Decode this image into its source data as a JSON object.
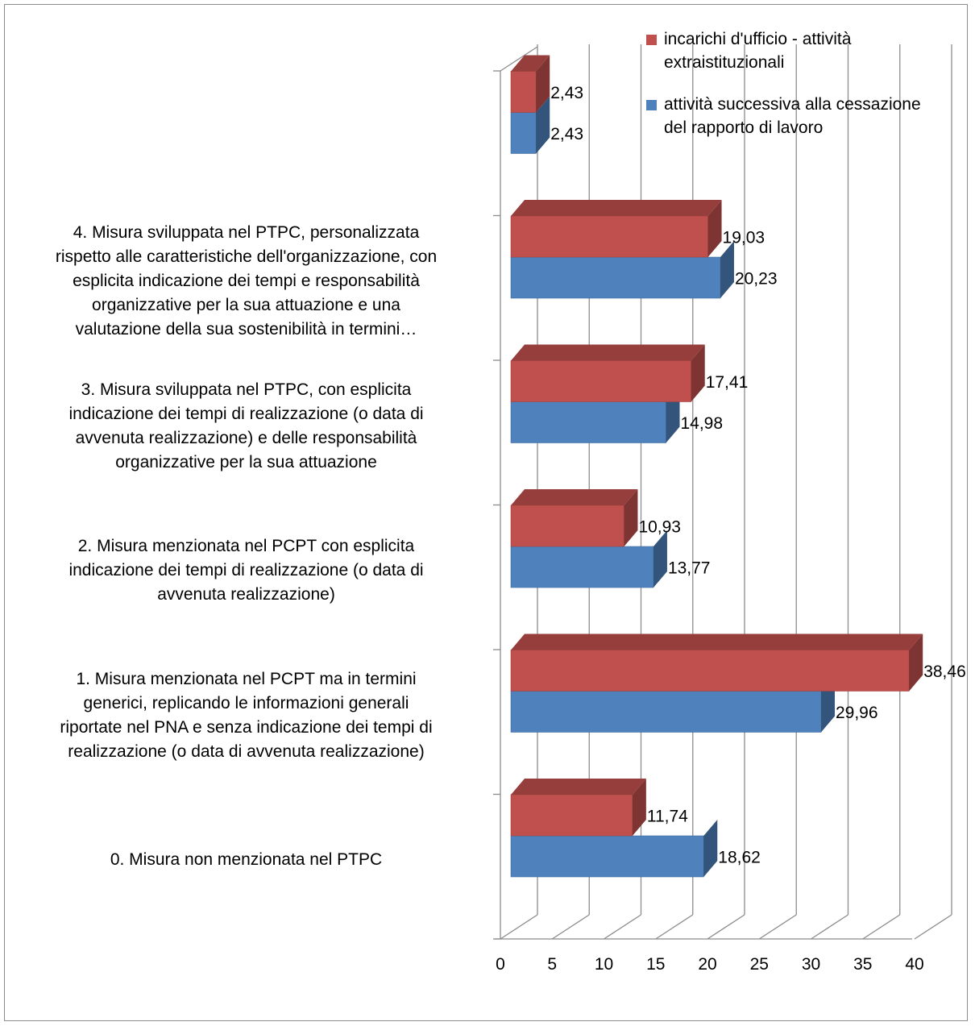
{
  "chart_data": {
    "type": "bar",
    "orientation": "horizontal",
    "style": "3d",
    "categories": [
      "0. Misura non menzionata nel PTPC",
      "1. Misura menzionata nel PCPT ma in termini generici, replicando le informazioni generali riportate nel PNA e senza indicazione dei tempi di realizzazione (o data di avvenuta realizzazione)",
      "2. Misura menzionata nel PCPT con esplicita indicazione dei tempi di realizzazione (o data di avvenuta realizzazione)",
      "3. Misura sviluppata nel PTPC, con esplicita indicazione dei tempi di realizzazione (o data di avvenuta realizzazione) e delle responsabilità organizzative per la sua attuazione",
      "4. Misura sviluppata nel PTPC, personalizzata rispetto alle caratteristiche dell'organizzazione, con esplicita indicazione dei tempi e responsabilità organizzative per la sua attuazione e una valutazione della sua sostenibilità in termini…",
      ""
    ],
    "category_lines": [
      [
        "0. Misura non menzionata nel PTPC"
      ],
      [
        "1. Misura menzionata nel PCPT ma in termini",
        "generici, replicando le informazioni generali",
        "riportate nel PNA e senza indicazione dei tempi di",
        "realizzazione (o data di avvenuta realizzazione)"
      ],
      [
        "2. Misura menzionata nel PCPT con esplicita",
        "indicazione dei tempi di realizzazione (o data di",
        "avvenuta realizzazione)"
      ],
      [
        "3. Misura sviluppata nel PTPC, con esplicita",
        "indicazione dei tempi di realizzazione (o data di",
        "avvenuta realizzazione) e delle responsabilità",
        "organizzative per la sua attuazione"
      ],
      [
        "4. Misura sviluppata nel PTPC, personalizzata",
        "rispetto alle caratteristiche dell'organizzazione, con",
        "esplicita indicazione dei tempi e responsabilità",
        "organizzative per la sua attuazione e una",
        "valutazione della sua sostenibilità in termini…"
      ],
      []
    ],
    "series": [
      {
        "name": "attività successiva alla cessazione del rapporto di lavoro",
        "legend_lines": [
          "attività successiva alla cessazione",
          "del rapporto di lavoro"
        ],
        "color": "#4f81bd",
        "values": [
          18.62,
          29.96,
          13.77,
          14.98,
          20.23,
          2.43
        ],
        "labels": [
          "18,62",
          "29,96",
          "13,77",
          "14,98",
          "20,23",
          "2,43"
        ]
      },
      {
        "name": "incarichi d'ufficio - attività extraistituzionali",
        "legend_lines": [
          "incarichi d'ufficio - attività",
          "extraistituzionali"
        ],
        "color": "#c0504d",
        "values": [
          11.74,
          38.46,
          10.93,
          17.41,
          19.03,
          2.43
        ],
        "labels": [
          "11,74",
          "38,46",
          "10,93",
          "17,41",
          "19,03",
          "2,43"
        ]
      }
    ],
    "xlim": [
      0,
      40
    ],
    "x_ticks": [
      0,
      5,
      10,
      15,
      20,
      25,
      30,
      35,
      40
    ],
    "grid": true,
    "legend_position": "top-right"
  }
}
